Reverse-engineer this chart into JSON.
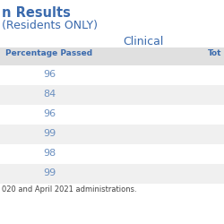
{
  "title_line1": "n Results",
  "title_line2": "(Residents ONLY)",
  "section_header": "Clinical",
  "col_header1": "Percentage Passed",
  "col_header2": "Tot",
  "values": [
    96,
    84,
    96,
    99,
    98,
    99
  ],
  "footer": "020 and April 2021 administrations.",
  "title_color": "#3a6aad",
  "header_color": "#3a6aad",
  "value_color": "#6a8fc0",
  "footer_color": "#444444",
  "row_bg_light": "#f0f0f0",
  "row_bg_white": "#ffffff",
  "header_row_bg": "#e0e0e0",
  "background_color": "#ffffff"
}
